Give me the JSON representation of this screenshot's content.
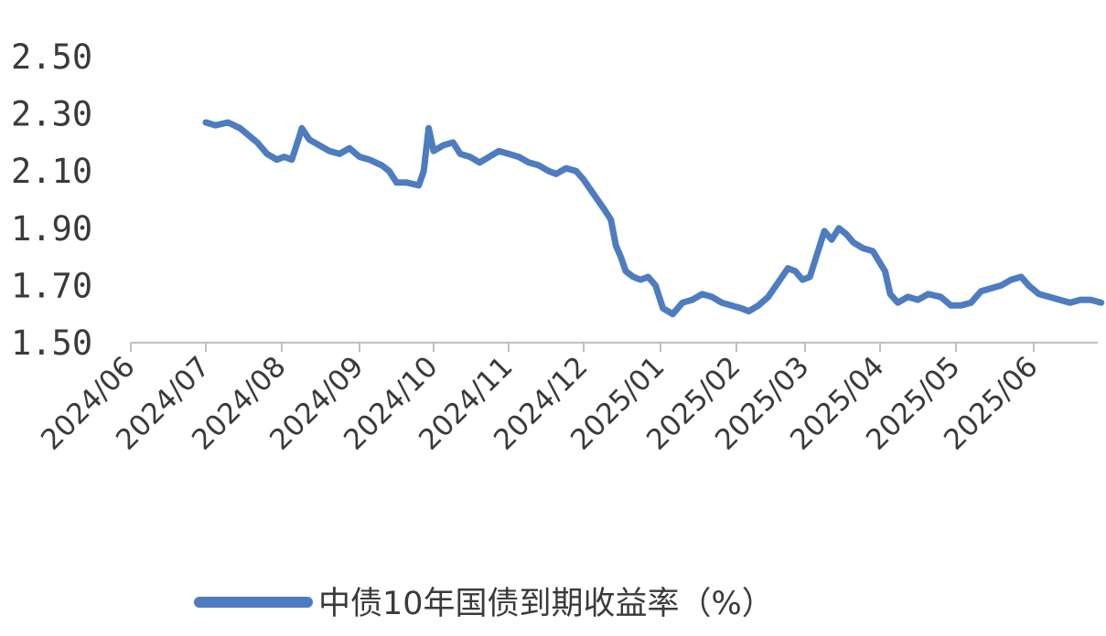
{
  "chart_data": {
    "type": "line",
    "title": "",
    "xlabel": "",
    "ylabel": "",
    "x_tick_labels": [
      "2024/06",
      "2024/07",
      "2024/08",
      "2024/09",
      "2024/10",
      "2024/11",
      "2024/12",
      "2025/01",
      "2025/02",
      "2025/03",
      "2025/04",
      "2025/05",
      "2025/06"
    ],
    "y_tick_labels": [
      "1.50",
      "1.70",
      "1.90",
      "2.10",
      "2.30",
      "2.50"
    ],
    "ylim": [
      1.5,
      2.5
    ],
    "grid": false,
    "legend": "bottom-center",
    "series": [
      {
        "name": "中债10年国债到期收益率（%）",
        "color": "#4d7cc0",
        "points": [
          [
            "2024/07/01",
            2.27
          ],
          [
            "2024/07/05",
            2.26
          ],
          [
            "2024/07/10",
            2.27
          ],
          [
            "2024/07/15",
            2.25
          ],
          [
            "2024/07/22",
            2.2
          ],
          [
            "2024/07/26",
            2.16
          ],
          [
            "2024/07/30",
            2.14
          ],
          [
            "2024/08/02",
            2.15
          ],
          [
            "2024/08/05",
            2.14
          ],
          [
            "2024/08/08",
            2.22
          ],
          [
            "2024/08/09",
            2.25
          ],
          [
            "2024/08/12",
            2.21
          ],
          [
            "2024/08/16",
            2.19
          ],
          [
            "2024/08/20",
            2.17
          ],
          [
            "2024/08/24",
            2.16
          ],
          [
            "2024/08/28",
            2.18
          ],
          [
            "2024/09/01",
            2.15
          ],
          [
            "2024/09/05",
            2.14
          ],
          [
            "2024/09/10",
            2.12
          ],
          [
            "2024/09/13",
            2.1
          ],
          [
            "2024/09/16",
            2.06
          ],
          [
            "2024/09/20",
            2.06
          ],
          [
            "2024/09/25",
            2.05
          ],
          [
            "2024/09/27",
            2.1
          ],
          [
            "2024/09/29",
            2.25
          ],
          [
            "2024/10/01",
            2.17
          ],
          [
            "2024/10/05",
            2.19
          ],
          [
            "2024/10/09",
            2.2
          ],
          [
            "2024/10/12",
            2.16
          ],
          [
            "2024/10/16",
            2.15
          ],
          [
            "2024/10/20",
            2.13
          ],
          [
            "2024/10/24",
            2.15
          ],
          [
            "2024/10/28",
            2.17
          ],
          [
            "2024/11/01",
            2.16
          ],
          [
            "2024/11/05",
            2.15
          ],
          [
            "2024/11/09",
            2.13
          ],
          [
            "2024/11/13",
            2.12
          ],
          [
            "2024/11/17",
            2.1
          ],
          [
            "2024/11/20",
            2.09
          ],
          [
            "2024/11/24",
            2.11
          ],
          [
            "2024/11/28",
            2.1
          ],
          [
            "2024/12/01",
            2.07
          ],
          [
            "2024/12/05",
            2.02
          ],
          [
            "2024/12/09",
            1.97
          ],
          [
            "2024/12/12",
            1.93
          ],
          [
            "2024/12/14",
            1.84
          ],
          [
            "2024/12/16",
            1.8
          ],
          [
            "2024/12/18",
            1.75
          ],
          [
            "2024/12/21",
            1.73
          ],
          [
            "2024/12/24",
            1.72
          ],
          [
            "2024/12/27",
            1.73
          ],
          [
            "2024/12/30",
            1.7
          ],
          [
            "2025/01/02",
            1.62
          ],
          [
            "2025/01/06",
            1.6
          ],
          [
            "2025/01/10",
            1.64
          ],
          [
            "2025/01/14",
            1.65
          ],
          [
            "2025/01/18",
            1.67
          ],
          [
            "2025/01/22",
            1.66
          ],
          [
            "2025/01/26",
            1.64
          ],
          [
            "2025/01/30",
            1.63
          ],
          [
            "2025/02/03",
            1.62
          ],
          [
            "2025/02/06",
            1.61
          ],
          [
            "2025/02/10",
            1.63
          ],
          [
            "2025/02/14",
            1.66
          ],
          [
            "2025/02/18",
            1.71
          ],
          [
            "2025/02/22",
            1.76
          ],
          [
            "2025/02/25",
            1.75
          ],
          [
            "2025/02/28",
            1.72
          ],
          [
            "2025/03/03",
            1.73
          ],
          [
            "2025/03/06",
            1.81
          ],
          [
            "2025/03/09",
            1.89
          ],
          [
            "2025/03/12",
            1.86
          ],
          [
            "2025/03/15",
            1.9
          ],
          [
            "2025/03/18",
            1.88
          ],
          [
            "2025/03/21",
            1.85
          ],
          [
            "2025/03/25",
            1.83
          ],
          [
            "2025/03/29",
            1.82
          ],
          [
            "2025/04/03",
            1.75
          ],
          [
            "2025/04/05",
            1.67
          ],
          [
            "2025/04/08",
            1.64
          ],
          [
            "2025/04/12",
            1.66
          ],
          [
            "2025/04/16",
            1.65
          ],
          [
            "2025/04/20",
            1.67
          ],
          [
            "2025/04/25",
            1.66
          ],
          [
            "2025/04/29",
            1.63
          ],
          [
            "2025/05/03",
            1.63
          ],
          [
            "2025/05/07",
            1.64
          ],
          [
            "2025/05/11",
            1.68
          ],
          [
            "2025/05/15",
            1.69
          ],
          [
            "2025/05/19",
            1.7
          ],
          [
            "2025/05/23",
            1.72
          ],
          [
            "2025/05/27",
            1.73
          ],
          [
            "2025/05/30",
            1.7
          ],
          [
            "2025/06/03",
            1.67
          ],
          [
            "2025/06/07",
            1.66
          ],
          [
            "2025/06/11",
            1.65
          ],
          [
            "2025/06/15",
            1.64
          ],
          [
            "2025/06/19",
            1.65
          ],
          [
            "2025/06/23",
            1.65
          ],
          [
            "2025/06/27",
            1.64
          ]
        ]
      }
    ]
  }
}
